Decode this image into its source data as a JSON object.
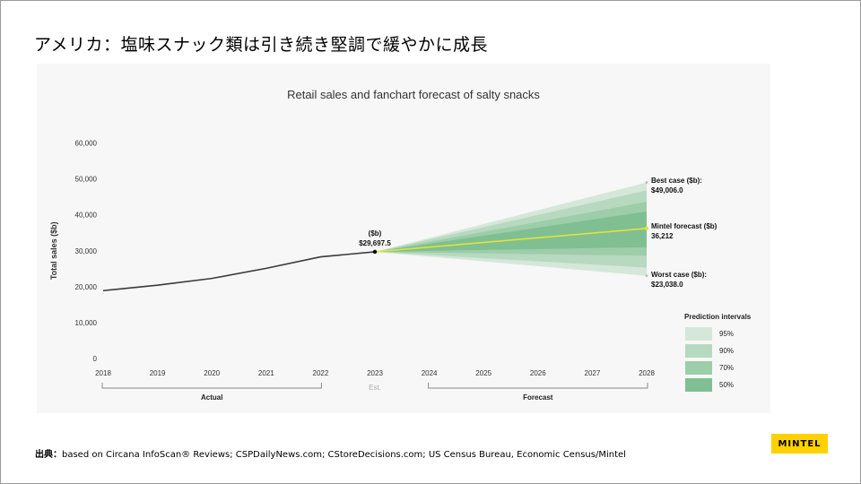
{
  "slide": {
    "title": "アメリカ：塩味スナック類は引き続き堅調で緩やかに成長",
    "source_lead": "出典：",
    "source_text": "based on Circana InfoScan® Reviews; CSPDailyNews.com; CStoreDecisions.com; US Census Bureau, Economic Census/Mintel",
    "logo": "MINTEL"
  },
  "colors": {
    "actual_line": "#3a3a3a",
    "forecast_line": "#e3e23a",
    "pi95": "#d5e7d9",
    "pi90": "#b7d9bf",
    "pi70": "#9dcda9",
    "pi50": "#7fbf92"
  },
  "chart_data": {
    "type": "line",
    "title": "Retail sales and fanchart forecast of salty snacks",
    "ylabel": "Total sales ($b)",
    "ylim": [
      0,
      60000
    ],
    "yticks": [
      "0",
      "10,000",
      "20,000",
      "30,000",
      "40,000",
      "50,000",
      "60,000"
    ],
    "yticks_values": [
      0,
      10000,
      20000,
      30000,
      40000,
      50000,
      60000
    ],
    "x": [
      2018,
      2019,
      2020,
      2021,
      2022,
      2023,
      2024,
      2025,
      2026,
      2027,
      2028
    ],
    "xlabels": [
      "2018",
      "2019",
      "2020",
      "2021",
      "2022",
      "2023",
      "2024",
      "2025",
      "2026",
      "2027",
      "2028"
    ],
    "actual": {
      "x": [
        2018,
        2019,
        2020,
        2021,
        2022,
        2023
      ],
      "values": [
        18900,
        20400,
        22300,
        25100,
        28300,
        29697.5
      ]
    },
    "forecast": {
      "x": [
        2023,
        2028
      ],
      "values": [
        29697.5,
        36212
      ]
    },
    "prediction_intervals": [
      {
        "label": "95%",
        "low_2028": 23038.0,
        "high_2028": 49006.0
      },
      {
        "label": "90%",
        "low_2028": 25300,
        "high_2028": 46800
      },
      {
        "label": "70%",
        "low_2028": 28600,
        "high_2028": 43600
      },
      {
        "label": "50%",
        "low_2028": 31000,
        "high_2028": 40900
      }
    ],
    "legend_title": "Prediction intervals",
    "annotations": {
      "est_value_unit": "($b)",
      "est_value": "$29,697.5",
      "best_label": "Best case ($b):",
      "best_value": "$49,006.0",
      "mintel_label": "Mintel forecast ($b)",
      "mintel_value": "36,212",
      "worst_label": "Worst case ($b):",
      "worst_value": "$23,038.0"
    },
    "periods": {
      "actual": "Actual",
      "est": "Est.",
      "forecast": "Forecast"
    }
  }
}
